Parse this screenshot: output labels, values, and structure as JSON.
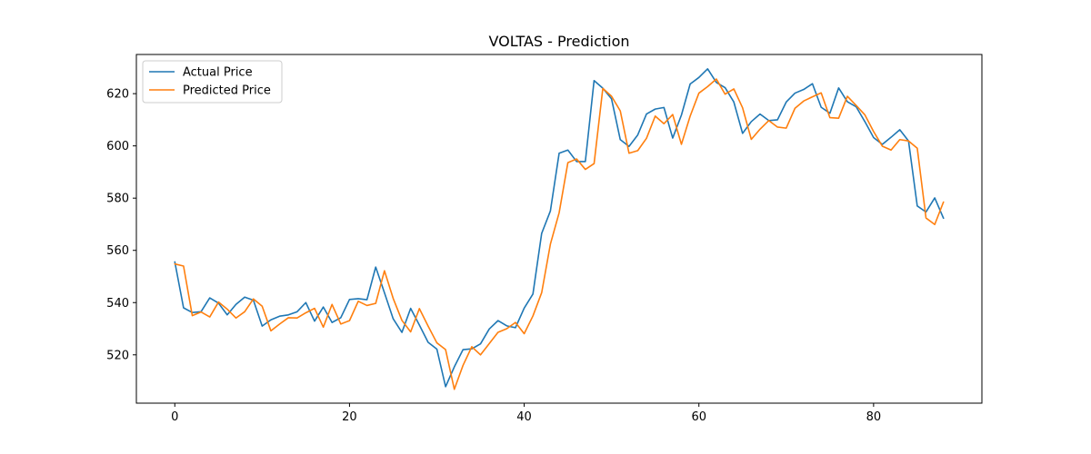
{
  "chart_data": {
    "type": "line",
    "title": "VOLTAS - Prediction",
    "xlabel": "",
    "ylabel": "",
    "xlim": [
      -4.4,
      92.4
    ],
    "ylim": [
      501.5,
      635
    ],
    "xticks": [
      0,
      20,
      40,
      60,
      80
    ],
    "yticks": [
      520,
      540,
      560,
      580,
      600,
      620
    ],
    "grid": false,
    "legend_position": "top-left",
    "series": [
      {
        "name": "Actual Price",
        "color": "#1f77b4",
        "x": [
          0,
          1,
          2,
          3,
          4,
          5,
          6,
          7,
          8,
          9,
          10,
          11,
          12,
          13,
          14,
          15,
          16,
          17,
          18,
          19,
          20,
          21,
          22,
          23,
          24,
          25,
          26,
          27,
          28,
          29,
          30,
          31,
          32,
          33,
          34,
          35,
          36,
          37,
          38,
          39,
          40,
          41,
          42,
          43,
          44,
          45,
          46,
          47,
          48,
          49,
          50,
          51,
          52,
          53,
          54,
          55,
          56,
          57,
          58,
          59,
          60,
          61,
          62,
          63,
          64,
          65,
          66,
          67,
          68,
          69,
          70,
          71,
          72,
          73,
          74,
          75,
          76,
          77,
          78,
          79,
          80,
          81,
          82,
          83,
          84,
          85,
          86,
          87,
          88
        ],
        "values": [
          555.6,
          538.0,
          536.2,
          536.5,
          541.8,
          539.8,
          535.3,
          539.3,
          542.1,
          540.9,
          531.0,
          533.4,
          534.8,
          535.3,
          536.5,
          540.0,
          532.9,
          538.3,
          532.4,
          534.2,
          541.2,
          541.5,
          541.1,
          553.6,
          543.8,
          533.8,
          528.6,
          537.8,
          531.4,
          524.8,
          522.2,
          507.8,
          515.4,
          522.0,
          522.3,
          524.2,
          529.9,
          533.1,
          531.1,
          530.4,
          537.9,
          543.3,
          566.5,
          575.1,
          597.2,
          598.4,
          594.0,
          594.0,
          625.0,
          622.1,
          618.0,
          602.4,
          599.8,
          604.2,
          612.2,
          614.1,
          614.7,
          603.0,
          611.8,
          623.7,
          626.2,
          629.5,
          624.3,
          622.3,
          616.8,
          604.8,
          609.3,
          612.2,
          609.7,
          610.0,
          616.8,
          620.2,
          621.6,
          623.8,
          614.8,
          612.5,
          622.2,
          616.9,
          615.0,
          609.3,
          603.2,
          600.6,
          603.3,
          606.2,
          601.9,
          577.0,
          574.7,
          580.1,
          572.3
        ]
      },
      {
        "name": "Predicted Price",
        "color": "#ff7f0e",
        "x": [
          0,
          1,
          2,
          3,
          4,
          5,
          6,
          7,
          8,
          9,
          10,
          11,
          12,
          13,
          14,
          15,
          16,
          17,
          18,
          19,
          20,
          21,
          22,
          23,
          24,
          25,
          26,
          27,
          28,
          29,
          30,
          31,
          32,
          33,
          34,
          35,
          36,
          37,
          38,
          39,
          40,
          41,
          42,
          43,
          44,
          45,
          46,
          47,
          48,
          49,
          50,
          51,
          52,
          53,
          54,
          55,
          56,
          57,
          58,
          59,
          60,
          61,
          62,
          63,
          64,
          65,
          66,
          67,
          68,
          69,
          70,
          71,
          72,
          73,
          74,
          75,
          76,
          77,
          78,
          79,
          80,
          81,
          82,
          83,
          84,
          85,
          86,
          87,
          88
        ],
        "values": [
          554.8,
          554.0,
          535.0,
          536.4,
          534.5,
          540.2,
          537.5,
          534.1,
          536.5,
          541.4,
          538.6,
          529.2,
          531.8,
          534.2,
          534.1,
          536.1,
          537.8,
          530.6,
          539.3,
          531.8,
          533.1,
          540.5,
          538.9,
          539.7,
          552.2,
          541.6,
          533.2,
          528.8,
          537.7,
          531.0,
          524.6,
          522.0,
          506.8,
          516.0,
          523.1,
          520.0,
          524.3,
          528.6,
          530.0,
          532.4,
          528.1,
          534.9,
          543.8,
          562.4,
          574.4,
          593.6,
          595.0,
          591.0,
          593.2,
          622.0,
          619.0,
          613.4,
          597.2,
          598.2,
          602.9,
          611.4,
          608.5,
          612.0,
          600.6,
          611.4,
          620.2,
          622.7,
          625.6,
          619.8,
          621.8,
          614.6,
          602.5,
          606.4,
          609.7,
          607.2,
          606.8,
          614.4,
          617.2,
          618.8,
          620.3,
          610.8,
          610.6,
          619.0,
          615.5,
          611.9,
          605.5,
          599.9,
          598.4,
          602.4,
          601.9,
          599.1,
          572.4,
          569.9,
          578.5
        ]
      }
    ]
  }
}
